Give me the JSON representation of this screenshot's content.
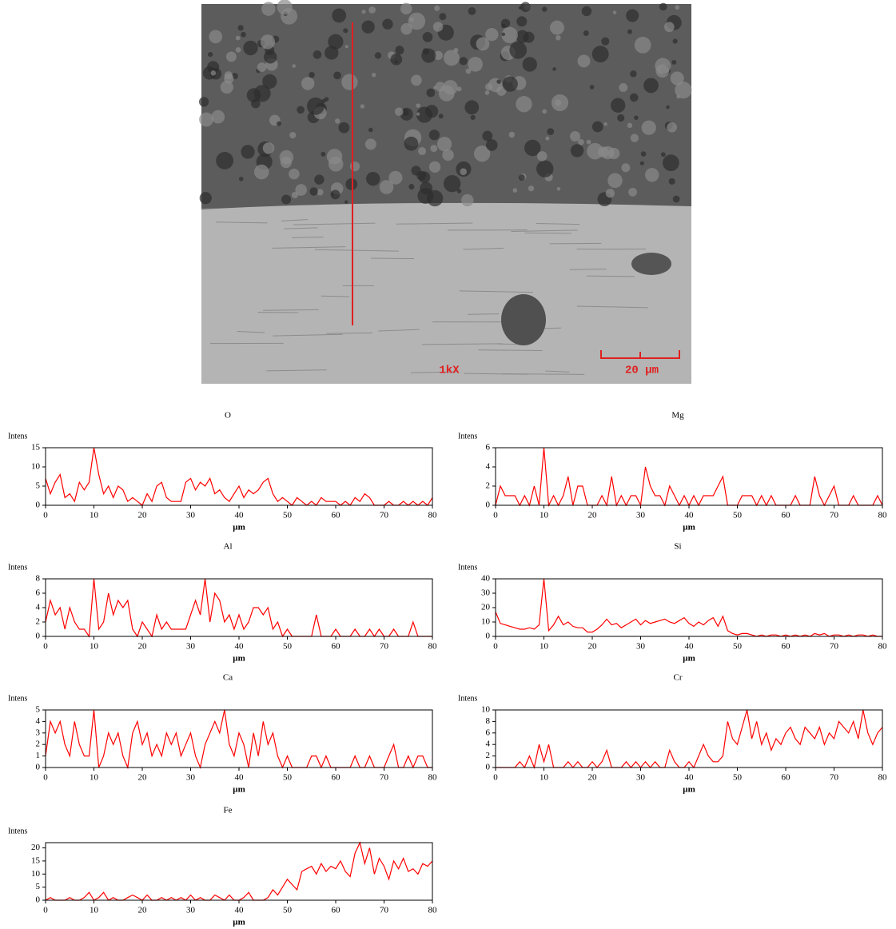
{
  "micrograph": {
    "magnification": "1kX",
    "scale_bar": "20 µm"
  },
  "chart_data": [
    {
      "type": "line",
      "title": "O",
      "ylabel": "Intens",
      "xlabel": "µm",
      "color": "#ff0000",
      "xlim": [
        0,
        80
      ],
      "xticks": [
        0,
        10,
        20,
        30,
        40,
        50,
        60,
        70,
        80
      ],
      "ylim": [
        0,
        15
      ],
      "yticks": [
        0,
        5,
        10,
        15
      ],
      "x": [
        0,
        1,
        2,
        3,
        4,
        5,
        6,
        7,
        8,
        9,
        10,
        11,
        12,
        13,
        14,
        15,
        16,
        17,
        18,
        19,
        20,
        21,
        22,
        23,
        24,
        25,
        26,
        27,
        28,
        29,
        30,
        31,
        32,
        33,
        34,
        35,
        36,
        37,
        38,
        39,
        40,
        41,
        42,
        43,
        44,
        45,
        46,
        47,
        48,
        49,
        50,
        51,
        52,
        53,
        54,
        55,
        56,
        57,
        58,
        59,
        60,
        61,
        62,
        63,
        64,
        65,
        66,
        67,
        68,
        69,
        70,
        71,
        72,
        73,
        74,
        75,
        76,
        77,
        78,
        79,
        80
      ],
      "values": [
        7,
        3,
        6,
        8,
        2,
        3,
        1,
        6,
        4,
        6,
        15,
        8,
        3,
        5,
        2,
        5,
        4,
        1,
        2,
        1,
        0,
        3,
        1,
        5,
        6,
        2,
        1,
        1,
        1,
        6,
        7,
        4,
        6,
        5,
        7,
        3,
        4,
        2,
        1,
        3,
        5,
        2,
        4,
        3,
        4,
        6,
        7,
        3,
        1,
        2,
        1,
        0,
        2,
        1,
        0,
        1,
        0,
        2,
        1,
        1,
        1,
        0,
        1,
        0,
        2,
        1,
        3,
        2,
        0,
        0,
        0,
        1,
        0,
        0,
        1,
        0,
        1,
        0,
        1,
        0,
        2
      ]
    },
    {
      "type": "line",
      "title": "Mg",
      "ylabel": "Intens",
      "xlabel": "µm",
      "color": "#ff0000",
      "xlim": [
        0,
        80
      ],
      "xticks": [
        0,
        10,
        20,
        30,
        40,
        50,
        60,
        70,
        80
      ],
      "ylim": [
        0,
        6
      ],
      "yticks": [
        0,
        2,
        4,
        6
      ],
      "x": [
        0,
        1,
        2,
        3,
        4,
        5,
        6,
        7,
        8,
        9,
        10,
        11,
        12,
        13,
        14,
        15,
        16,
        17,
        18,
        19,
        20,
        21,
        22,
        23,
        24,
        25,
        26,
        27,
        28,
        29,
        30,
        31,
        32,
        33,
        34,
        35,
        36,
        37,
        38,
        39,
        40,
        41,
        42,
        43,
        44,
        45,
        46,
        47,
        48,
        49,
        50,
        51,
        52,
        53,
        54,
        55,
        56,
        57,
        58,
        59,
        60,
        61,
        62,
        63,
        64,
        65,
        66,
        67,
        68,
        69,
        70,
        71,
        72,
        73,
        74,
        75,
        76,
        77,
        78,
        79,
        80
      ],
      "values": [
        0,
        2,
        1,
        1,
        1,
        0,
        1,
        0,
        2,
        0,
        6,
        0,
        1,
        0,
        1,
        3,
        0,
        2,
        2,
        0,
        0,
        0,
        1,
        0,
        3,
        0,
        1,
        0,
        1,
        1,
        0,
        4,
        2,
        1,
        1,
        0,
        2,
        1,
        0,
        1,
        0,
        1,
        0,
        1,
        1,
        1,
        2,
        3,
        0,
        0,
        0,
        1,
        1,
        1,
        0,
        1,
        0,
        1,
        0,
        0,
        0,
        0,
        1,
        0,
        0,
        0,
        3,
        1,
        0,
        1,
        2,
        0,
        0,
        0,
        1,
        0,
        0,
        0,
        0,
        1,
        0
      ]
    },
    {
      "type": "line",
      "title": "Al",
      "ylabel": "Intens",
      "xlabel": "µm",
      "color": "#ff0000",
      "xlim": [
        0,
        80
      ],
      "xticks": [
        0,
        10,
        20,
        30,
        40,
        50,
        60,
        70,
        80
      ],
      "ylim": [
        0,
        8
      ],
      "yticks": [
        0,
        2,
        4,
        6,
        8
      ],
      "x": [
        0,
        1,
        2,
        3,
        4,
        5,
        6,
        7,
        8,
        9,
        10,
        11,
        12,
        13,
        14,
        15,
        16,
        17,
        18,
        19,
        20,
        21,
        22,
        23,
        24,
        25,
        26,
        27,
        28,
        29,
        30,
        31,
        32,
        33,
        34,
        35,
        36,
        37,
        38,
        39,
        40,
        41,
        42,
        43,
        44,
        45,
        46,
        47,
        48,
        49,
        50,
        51,
        52,
        53,
        54,
        55,
        56,
        57,
        58,
        59,
        60,
        61,
        62,
        63,
        64,
        65,
        66,
        67,
        68,
        69,
        70,
        71,
        72,
        73,
        74,
        75,
        76,
        77,
        78,
        79,
        80
      ],
      "values": [
        2,
        5,
        3,
        4,
        1,
        4,
        2,
        1,
        1,
        0,
        8,
        1,
        2,
        6,
        3,
        5,
        4,
        5,
        1,
        0,
        2,
        1,
        0,
        3,
        1,
        2,
        1,
        1,
        1,
        1,
        3,
        5,
        3,
        8,
        2,
        6,
        5,
        2,
        3,
        1,
        3,
        1,
        2,
        4,
        4,
        3,
        4,
        1,
        2,
        0,
        1,
        0,
        0,
        0,
        0,
        0,
        3,
        0,
        0,
        0,
        1,
        0,
        0,
        0,
        1,
        0,
        0,
        1,
        0,
        1,
        0,
        0,
        1,
        0,
        0,
        0,
        2,
        0,
        0,
        0,
        0
      ]
    },
    {
      "type": "line",
      "title": "Si",
      "ylabel": "Intens",
      "xlabel": "µm",
      "color": "#ff0000",
      "xlim": [
        0,
        80
      ],
      "xticks": [
        0,
        10,
        20,
        30,
        40,
        50,
        60,
        70,
        80
      ],
      "ylim": [
        0,
        40
      ],
      "yticks": [
        0,
        10,
        20,
        30,
        40
      ],
      "x": [
        0,
        1,
        2,
        3,
        4,
        5,
        6,
        7,
        8,
        9,
        10,
        11,
        12,
        13,
        14,
        15,
        16,
        17,
        18,
        19,
        20,
        21,
        22,
        23,
        24,
        25,
        26,
        27,
        28,
        29,
        30,
        31,
        32,
        33,
        34,
        35,
        36,
        37,
        38,
        39,
        40,
        41,
        42,
        43,
        44,
        45,
        46,
        47,
        48,
        49,
        50,
        51,
        52,
        53,
        54,
        55,
        56,
        57,
        58,
        59,
        60,
        61,
        62,
        63,
        64,
        65,
        66,
        67,
        68,
        69,
        70,
        71,
        72,
        73,
        74,
        75,
        76,
        77,
        78,
        79,
        80
      ],
      "values": [
        17,
        9,
        8,
        7,
        6,
        5,
        5,
        6,
        5,
        8,
        40,
        4,
        8,
        14,
        8,
        10,
        7,
        6,
        6,
        3,
        3,
        5,
        8,
        12,
        8,
        9,
        6,
        8,
        10,
        12,
        8,
        11,
        9,
        10,
        11,
        12,
        10,
        9,
        11,
        13,
        9,
        7,
        10,
        8,
        11,
        13,
        7,
        14,
        4,
        2,
        1,
        2,
        2,
        1,
        0,
        1,
        0,
        1,
        1,
        0,
        1,
        0,
        1,
        0,
        1,
        0,
        2,
        1,
        2,
        0,
        1,
        1,
        0,
        1,
        0,
        1,
        1,
        0,
        1,
        0,
        0
      ]
    },
    {
      "type": "line",
      "title": "Ca",
      "ylabel": "Intens",
      "xlabel": "µm",
      "color": "#ff0000",
      "xlim": [
        0,
        80
      ],
      "xticks": [
        0,
        10,
        20,
        30,
        40,
        50,
        60,
        70,
        80
      ],
      "ylim": [
        0,
        5
      ],
      "yticks": [
        0,
        1,
        2,
        3,
        4,
        5
      ],
      "x": [
        0,
        1,
        2,
        3,
        4,
        5,
        6,
        7,
        8,
        9,
        10,
        11,
        12,
        13,
        14,
        15,
        16,
        17,
        18,
        19,
        20,
        21,
        22,
        23,
        24,
        25,
        26,
        27,
        28,
        29,
        30,
        31,
        32,
        33,
        34,
        35,
        36,
        37,
        38,
        39,
        40,
        41,
        42,
        43,
        44,
        45,
        46,
        47,
        48,
        49,
        50,
        51,
        52,
        53,
        54,
        55,
        56,
        57,
        58,
        59,
        60,
        61,
        62,
        63,
        64,
        65,
        66,
        67,
        68,
        69,
        70,
        71,
        72,
        73,
        74,
        75,
        76,
        77,
        78,
        79,
        80
      ],
      "values": [
        1,
        4,
        3,
        4,
        2,
        1,
        4,
        2,
        1,
        1,
        5,
        0,
        1,
        3,
        2,
        3,
        1,
        0,
        3,
        4,
        2,
        3,
        1,
        2,
        1,
        3,
        2,
        3,
        1,
        2,
        3,
        1,
        0,
        2,
        3,
        4,
        3,
        5,
        2,
        1,
        3,
        2,
        0,
        3,
        1,
        4,
        2,
        3,
        1,
        0,
        1,
        0,
        0,
        0,
        0,
        1,
        1,
        0,
        1,
        0,
        0,
        0,
        0,
        0,
        1,
        0,
        0,
        1,
        0,
        0,
        0,
        1,
        2,
        0,
        0,
        1,
        0,
        1,
        1,
        0,
        0
      ]
    },
    {
      "type": "line",
      "title": "Cr",
      "ylabel": "Intens",
      "xlabel": "µm",
      "color": "#ff0000",
      "xlim": [
        0,
        80
      ],
      "xticks": [
        0,
        10,
        20,
        30,
        40,
        50,
        60,
        70,
        80
      ],
      "ylim": [
        0,
        10
      ],
      "yticks": [
        0,
        2,
        4,
        6,
        8,
        10
      ],
      "x": [
        0,
        1,
        2,
        3,
        4,
        5,
        6,
        7,
        8,
        9,
        10,
        11,
        12,
        13,
        14,
        15,
        16,
        17,
        18,
        19,
        20,
        21,
        22,
        23,
        24,
        25,
        26,
        27,
        28,
        29,
        30,
        31,
        32,
        33,
        34,
        35,
        36,
        37,
        38,
        39,
        40,
        41,
        42,
        43,
        44,
        45,
        46,
        47,
        48,
        49,
        50,
        51,
        52,
        53,
        54,
        55,
        56,
        57,
        58,
        59,
        60,
        61,
        62,
        63,
        64,
        65,
        66,
        67,
        68,
        69,
        70,
        71,
        72,
        73,
        74,
        75,
        76,
        77,
        78,
        79,
        80
      ],
      "values": [
        0,
        0,
        0,
        0,
        0,
        1,
        0,
        2,
        0,
        4,
        1,
        4,
        0,
        0,
        0,
        1,
        0,
        1,
        0,
        0,
        1,
        0,
        1,
        3,
        0,
        0,
        0,
        1,
        0,
        1,
        0,
        1,
        0,
        1,
        0,
        0,
        3,
        1,
        0,
        0,
        1,
        0,
        2,
        4,
        2,
        1,
        1,
        2,
        8,
        5,
        4,
        7,
        10,
        5,
        8,
        4,
        6,
        3,
        5,
        4,
        6,
        7,
        5,
        4,
        7,
        6,
        5,
        7,
        4,
        6,
        5,
        8,
        7,
        6,
        8,
        5,
        10,
        6,
        4,
        6,
        7
      ]
    },
    {
      "type": "line",
      "title": "Fe",
      "ylabel": "Intens",
      "xlabel": "µm",
      "color": "#ff0000",
      "xlim": [
        0,
        80
      ],
      "xticks": [
        0,
        10,
        20,
        30,
        40,
        50,
        60,
        70,
        80
      ],
      "ylim": [
        0,
        22
      ],
      "yticks": [
        0,
        5,
        10,
        15,
        20
      ],
      "x": [
        0,
        1,
        2,
        3,
        4,
        5,
        6,
        7,
        8,
        9,
        10,
        11,
        12,
        13,
        14,
        15,
        16,
        17,
        18,
        19,
        20,
        21,
        22,
        23,
        24,
        25,
        26,
        27,
        28,
        29,
        30,
        31,
        32,
        33,
        34,
        35,
        36,
        37,
        38,
        39,
        40,
        41,
        42,
        43,
        44,
        45,
        46,
        47,
        48,
        49,
        50,
        51,
        52,
        53,
        54,
        55,
        56,
        57,
        58,
        59,
        60,
        61,
        62,
        63,
        64,
        65,
        66,
        67,
        68,
        69,
        70,
        71,
        72,
        73,
        74,
        75,
        76,
        77,
        78,
        79,
        80
      ],
      "values": [
        0,
        1,
        0,
        0,
        0,
        1,
        0,
        0,
        1,
        3,
        0,
        1,
        3,
        0,
        1,
        0,
        0,
        1,
        2,
        1,
        0,
        2,
        0,
        0,
        1,
        0,
        1,
        0,
        1,
        0,
        2,
        0,
        1,
        0,
        0,
        2,
        1,
        0,
        2,
        0,
        0,
        1,
        3,
        0,
        0,
        0,
        1,
        4,
        2,
        5,
        8,
        6,
        4,
        11,
        12,
        13,
        10,
        14,
        11,
        13,
        12,
        15,
        11,
        9,
        18,
        22,
        14,
        20,
        10,
        16,
        13,
        8,
        15,
        12,
        16,
        11,
        12,
        10,
        14,
        13,
        15
      ]
    }
  ]
}
